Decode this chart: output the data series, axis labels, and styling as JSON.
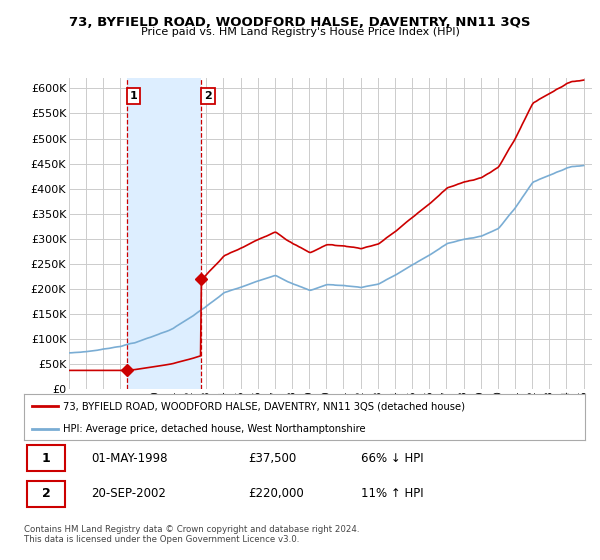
{
  "title": "73, BYFIELD ROAD, WOODFORD HALSE, DAVENTRY, NN11 3QS",
  "subtitle": "Price paid vs. HM Land Registry's House Price Index (HPI)",
  "legend_line1": "73, BYFIELD ROAD, WOODFORD HALSE, DAVENTRY, NN11 3QS (detached house)",
  "legend_line2": "HPI: Average price, detached house, West Northamptonshire",
  "transaction1_label": "1",
  "transaction1_date": "01-MAY-1998",
  "transaction1_price": "£37,500",
  "transaction1_hpi": "66% ↓ HPI",
  "transaction2_label": "2",
  "transaction2_date": "20-SEP-2002",
  "transaction2_price": "£220,000",
  "transaction2_hpi": "11% ↑ HPI",
  "footnote": "Contains HM Land Registry data © Crown copyright and database right 2024.\nThis data is licensed under the Open Government Licence v3.0.",
  "price_color": "#cc0000",
  "hpi_color": "#7aadd4",
  "vline_color": "#cc0000",
  "shade_color": "#ddeeff",
  "background_color": "#ffffff",
  "grid_color": "#cccccc",
  "ylim": [
    0,
    620000
  ],
  "yticks": [
    0,
    50000,
    100000,
    150000,
    200000,
    250000,
    300000,
    350000,
    400000,
    450000,
    500000,
    550000,
    600000
  ],
  "vline1_x": 1998.37,
  "vline2_x": 2002.72,
  "xlim_left": 1995.0,
  "xlim_right": 2025.5,
  "sale1_x": 1998.37,
  "sale1_y": 37500,
  "sale2_x": 2002.72,
  "sale2_y": 220000
}
